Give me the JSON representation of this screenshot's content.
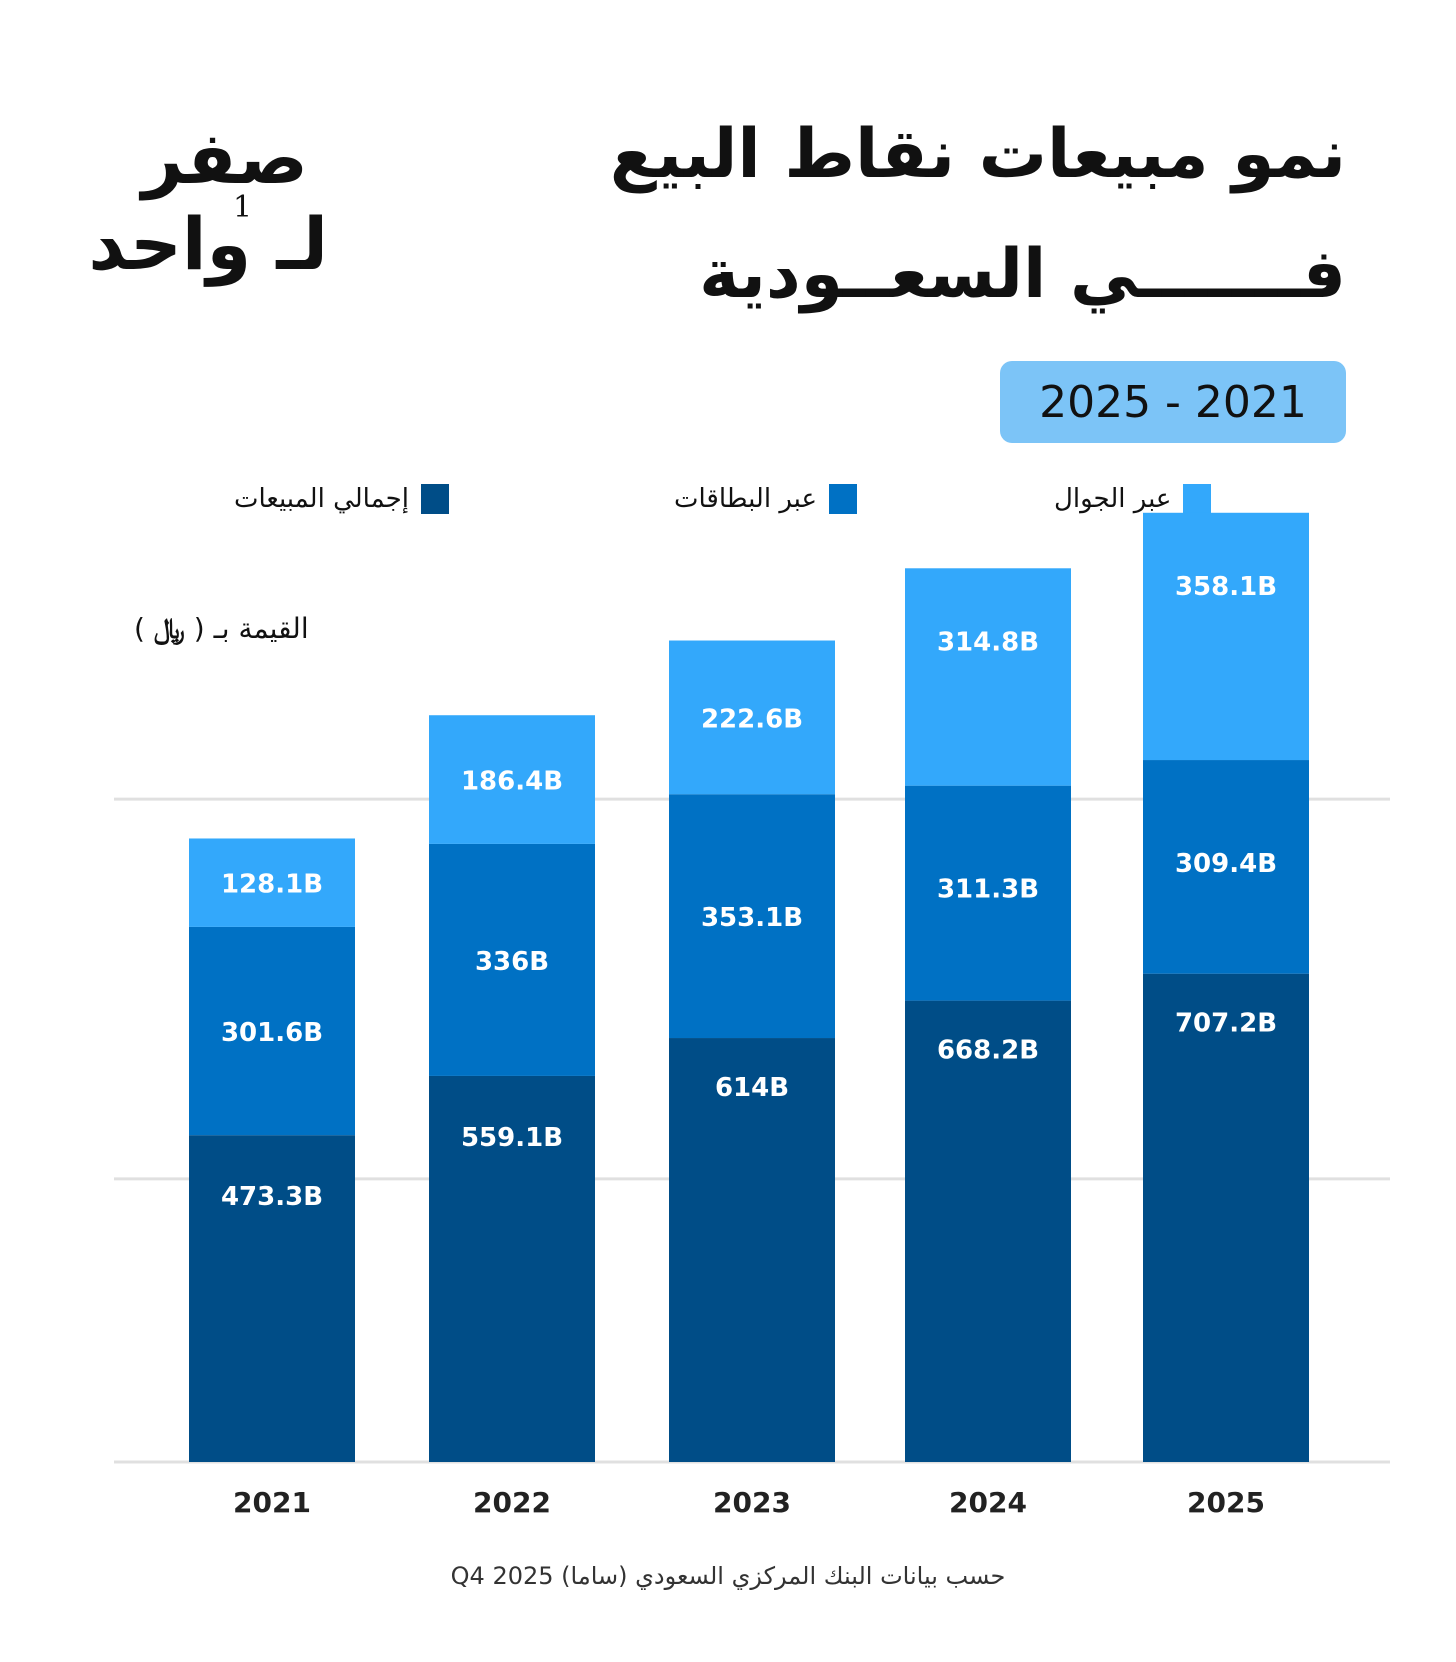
{
  "title": {
    "line1": "نمو مبيعات نقاط البيع",
    "line2": "فـــــــي السعــودية"
  },
  "logo": {
    "line1": "صفر",
    "line2": "لـ واحد",
    "digit": "1"
  },
  "period": "2025 - 2021",
  "unit": {
    "label": "القيمة بـ (",
    "currency": "﷼",
    "close": ")"
  },
  "footer": "حسب بيانات البنك المركزي السعودي (ساما) Q4 2025",
  "colors": {
    "total": "#004d87",
    "cards": "#0071c4",
    "mobile": "#33a8fb",
    "grid": "#e0e0e0",
    "badge": "#7cc4f7"
  },
  "chart_data": {
    "type": "bar",
    "stacked": true,
    "categories": [
      "2021",
      "2022",
      "2023",
      "2024",
      "2025"
    ],
    "series": [
      {
        "name": "إجمالي المبيعات",
        "key": "total",
        "values": [
          473.3,
          559.1,
          614,
          668.2,
          707.2
        ],
        "labels": [
          "473.3B",
          "559.1B",
          "614B",
          "668.2B",
          "707.2B"
        ]
      },
      {
        "name": "عبر البطاقات",
        "key": "cards",
        "values": [
          301.6,
          336,
          353.1,
          311.3,
          309.4
        ],
        "labels": [
          "301.6B",
          "336B",
          "353.1B",
          "311.3B",
          "309.4B"
        ]
      },
      {
        "name": "عبر الجوال",
        "key": "mobile",
        "values": [
          128.1,
          186.4,
          222.6,
          314.8,
          358.1
        ],
        "labels": [
          "128.1B",
          "186.4B",
          "222.6B",
          "314.8B",
          "358.1B"
        ]
      }
    ],
    "ylabel": "القيمة بـ ( ﷼ )",
    "ylim": [
      0,
      1400
    ],
    "grid": true,
    "legend": "top"
  }
}
